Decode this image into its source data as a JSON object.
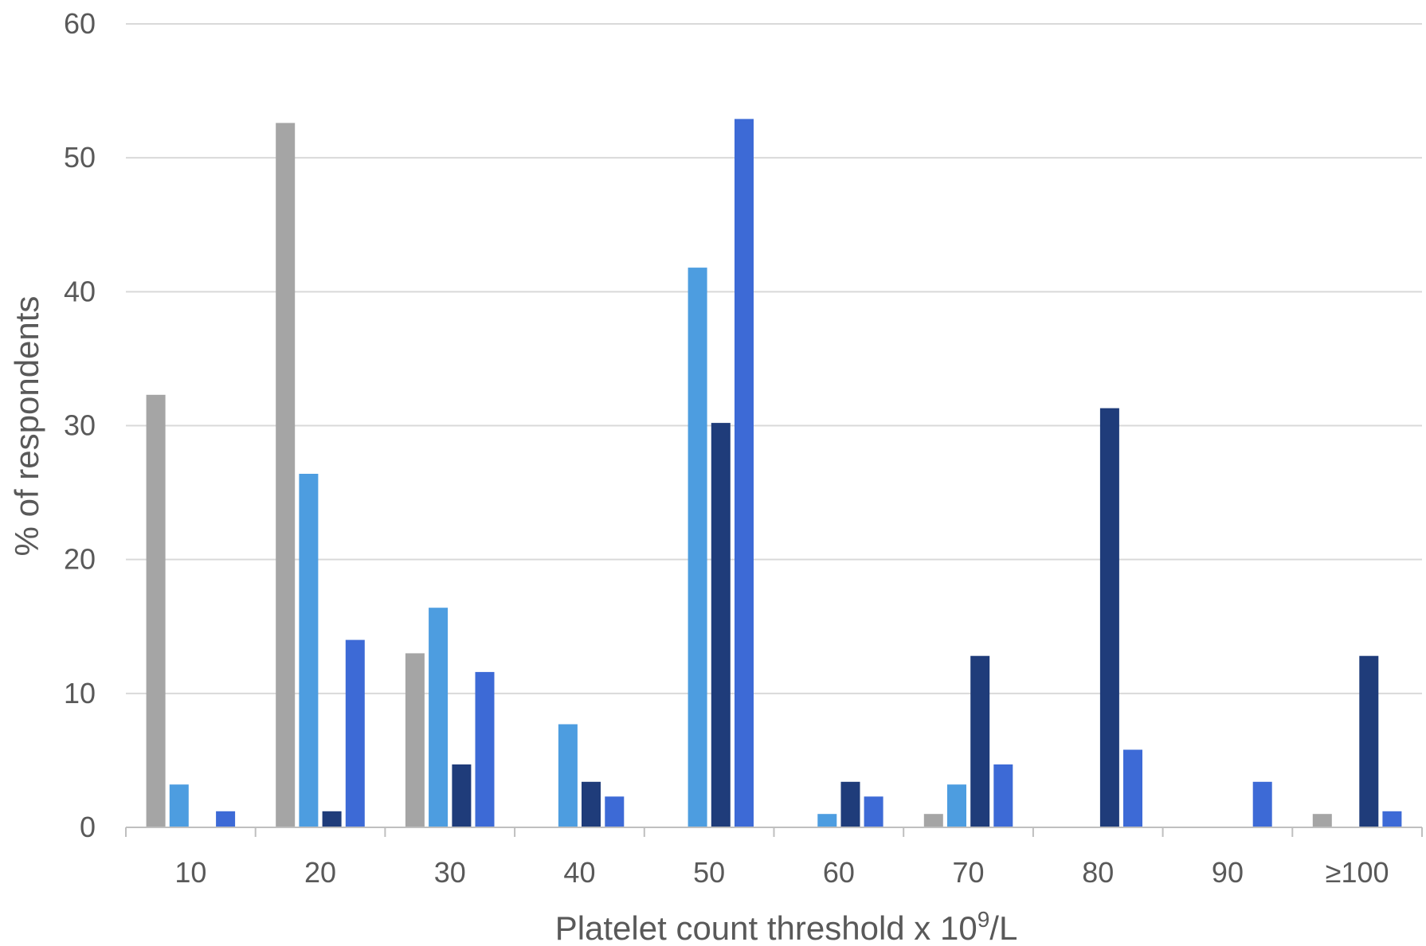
{
  "chart_data": {
    "type": "bar",
    "title": "",
    "xlabel": "Platelet count threshold x 10",
    "xlabel_sup": "9",
    "xlabel_suffix": "/L",
    "ylabel": "% of respondents",
    "ylim": [
      0,
      60
    ],
    "yticks": [
      "0",
      "10",
      "20",
      "30",
      "40",
      "50",
      "60"
    ],
    "grid": true,
    "categories": [
      "10",
      "20",
      "30",
      "40",
      "50",
      "60",
      "70",
      "80",
      "90",
      "≥100"
    ],
    "series": [
      {
        "color": "#a5a5a5",
        "values": [
          32.3,
          52.6,
          13.0,
          0,
          0,
          0,
          1.0,
          0,
          0,
          1.0
        ]
      },
      {
        "color": "#4d9de0",
        "values": [
          3.2,
          26.4,
          16.4,
          7.7,
          41.8,
          1.0,
          3.2,
          0,
          0,
          0
        ]
      },
      {
        "color": "#1f3c7a",
        "values": [
          0,
          1.2,
          4.7,
          3.4,
          30.2,
          3.4,
          12.8,
          31.3,
          0,
          12.8
        ]
      },
      {
        "color": "#3d6ad6",
        "values": [
          1.2,
          14.0,
          11.6,
          2.3,
          52.9,
          2.3,
          4.7,
          5.8,
          3.4,
          1.2
        ]
      }
    ]
  }
}
